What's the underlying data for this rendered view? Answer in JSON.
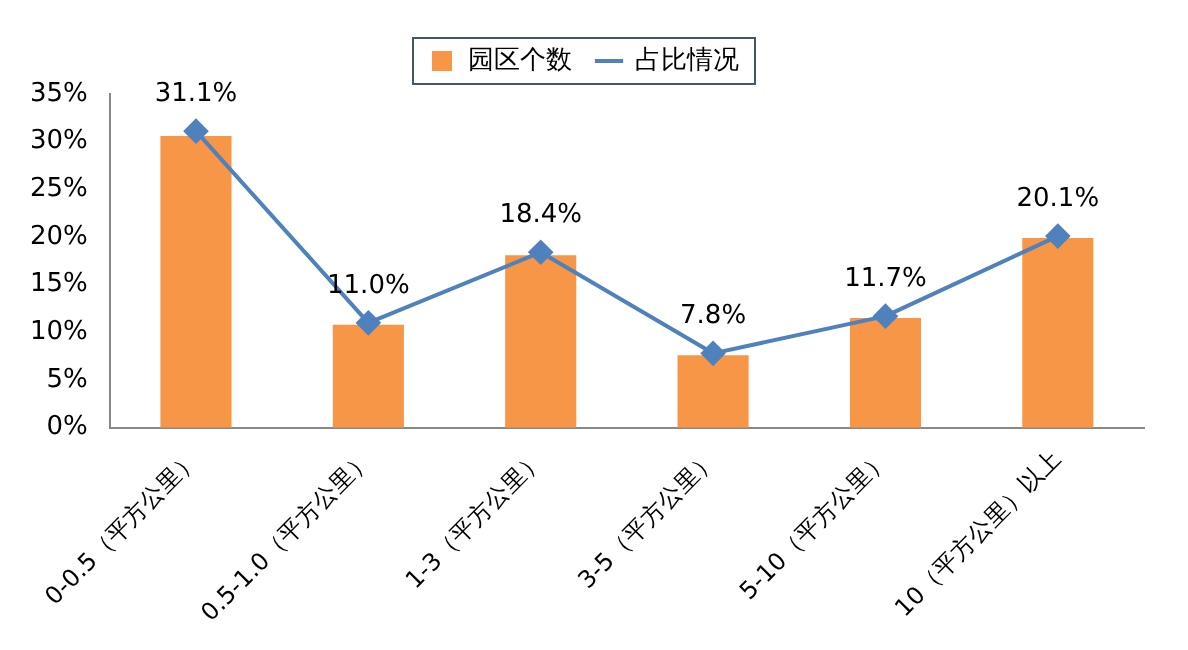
{
  "chart_data": {
    "type": "bar",
    "categories": [
      "0-0.5（平方公里）",
      "0.5-1.0（平方公里）",
      "1-3（平方公里）",
      "3-5（平方公里）",
      "5-10（平方公里）",
      "10（平方公里）以上"
    ],
    "series": [
      {
        "name": "园区个数",
        "color": "#f79646",
        "values": [
          30.6,
          10.8,
          18.1,
          7.6,
          11.5,
          19.9
        ]
      },
      {
        "name": "占比情况",
        "type": "line",
        "color": "#4f81bd",
        "marker": "diamond",
        "values": [
          31.1,
          11.0,
          18.4,
          7.8,
          11.7,
          20.1
        ],
        "value_labels": [
          "31.1%",
          "11.0%",
          "18.4%",
          "7.8%",
          "11.7%",
          "20.1%"
        ]
      }
    ],
    "ylim": [
      0,
      35
    ],
    "yticks": [
      {
        "value": 0,
        "label": "0%"
      },
      {
        "value": 5,
        "label": "5%"
      },
      {
        "value": 10,
        "label": "10%"
      },
      {
        "value": 15,
        "label": "15%"
      },
      {
        "value": 20,
        "label": "20%"
      },
      {
        "value": 25,
        "label": "25%"
      },
      {
        "value": 30,
        "label": "30%"
      },
      {
        "value": 35,
        "label": "35%"
      }
    ],
    "grid": false,
    "legend": "top"
  }
}
